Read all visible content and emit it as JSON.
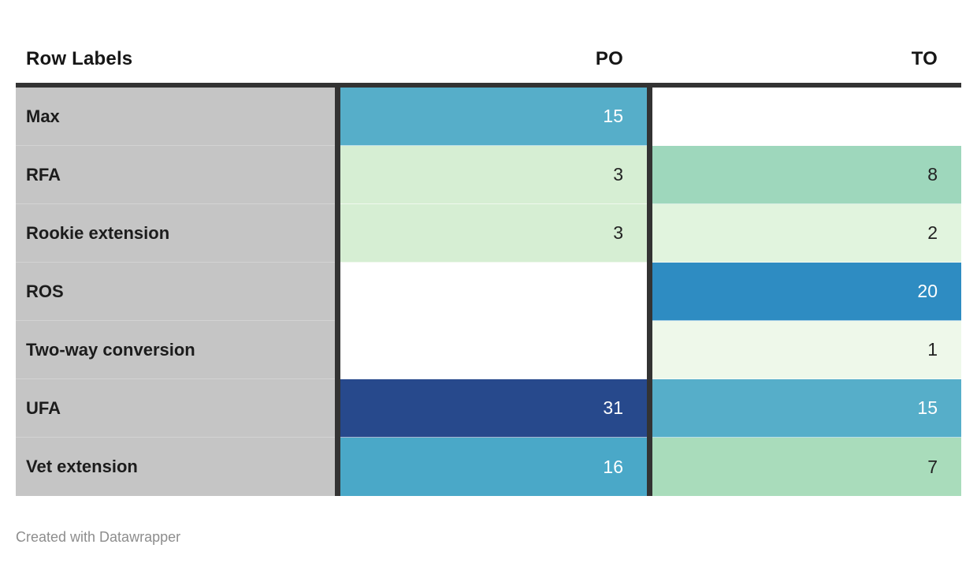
{
  "chart_data": {
    "type": "heatmap",
    "categories": [
      "Max",
      "RFA",
      "Rookie extension",
      "ROS",
      "Two-way conversion",
      "UFA",
      "Vet extension"
    ],
    "series": [
      {
        "name": "PO",
        "values": [
          15,
          3,
          3,
          null,
          null,
          31,
          16
        ]
      },
      {
        "name": "TO",
        "values": [
          null,
          8,
          2,
          20,
          1,
          15,
          7
        ]
      }
    ]
  },
  "table": {
    "columns": [
      {
        "label": "Row Labels"
      },
      {
        "label": "PO"
      },
      {
        "label": "TO"
      }
    ],
    "rows": [
      {
        "label": "Max",
        "po": {
          "value": "15",
          "style": "background:#56aec9;color:#ffffff"
        },
        "to": {
          "value": "",
          "style": "background:#ffffff;color:#222222"
        }
      },
      {
        "label": "RFA",
        "po": {
          "value": "3",
          "style": "background:#d6eed3;color:#222222"
        },
        "to": {
          "value": "8",
          "style": "background:#9ed7bc;color:#222222"
        }
      },
      {
        "label": "Rookie extension",
        "po": {
          "value": "3",
          "style": "background:#d6eed3;color:#222222"
        },
        "to": {
          "value": "2",
          "style": "background:#e1f4de;color:#222222"
        }
      },
      {
        "label": "ROS",
        "po": {
          "value": "",
          "style": "background:#ffffff;color:#222222"
        },
        "to": {
          "value": "20",
          "style": "background:#2e8cc2;color:#ffffff"
        }
      },
      {
        "label": "Two-way conversion",
        "po": {
          "value": "",
          "style": "background:#ffffff;color:#222222"
        },
        "to": {
          "value": "1",
          "style": "background:#eef8ea;color:#222222"
        }
      },
      {
        "label": "UFA",
        "po": {
          "value": "31",
          "style": "background:#27498c;color:#ffffff"
        },
        "to": {
          "value": "15",
          "style": "background:#56aec9;color:#ffffff"
        }
      },
      {
        "label": "Vet extension",
        "po": {
          "value": "16",
          "style": "background:#4aa8c8;color:#ffffff"
        },
        "to": {
          "value": "7",
          "style": "background:#a9dcbb;color:#222222"
        }
      }
    ]
  },
  "footer": {
    "attribution": "Created with Datawrapper"
  },
  "colors": {
    "row_label_bg": "#c5c5c5",
    "table_border": "#333333",
    "attribution_text": "#8d8d8d"
  }
}
